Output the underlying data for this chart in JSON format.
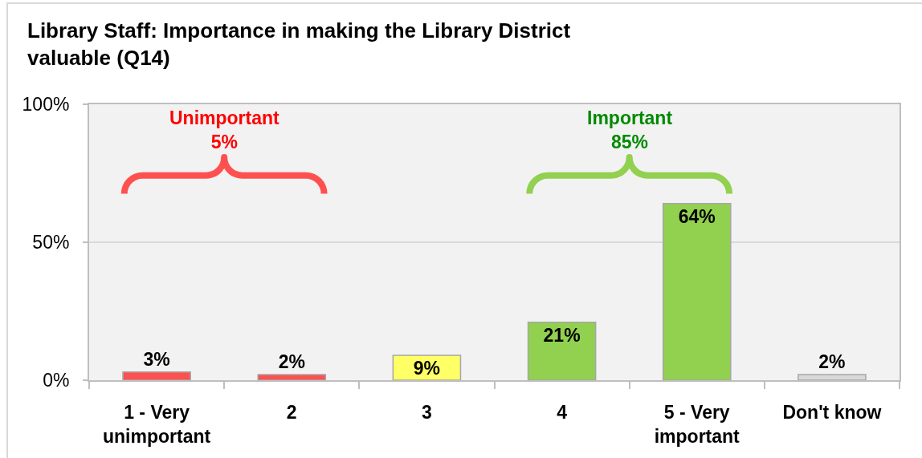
{
  "chart_data": {
    "type": "bar",
    "title": "Library Staff: Importance in making the Library District valuable (Q14)",
    "categories": [
      "1 - Very unimportant",
      "2",
      "3",
      "4",
      "5 - Very important",
      "Don't know"
    ],
    "values": [
      3,
      2,
      9,
      21,
      64,
      2
    ],
    "colors": [
      "#ff5050",
      "#ff5050",
      "#ffff66",
      "#92d050",
      "#92d050",
      "#d9d9d9"
    ],
    "value_labels": [
      "3%",
      "2%",
      "9%",
      "21%",
      "64%",
      "2%"
    ],
    "ylim": [
      0,
      100
    ],
    "yticks": [
      {
        "value": 0,
        "label": "0%"
      },
      {
        "value": 50,
        "label": "50%"
      },
      {
        "value": 100,
        "label": "100%"
      }
    ],
    "grid": "y",
    "legend": false,
    "annotations": [
      "Unimportant 5%",
      "Important 85%"
    ]
  }
}
